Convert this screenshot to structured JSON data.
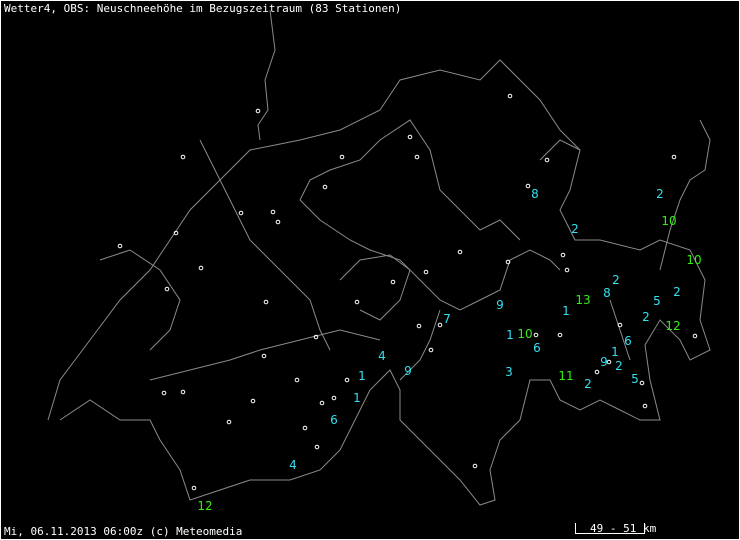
{
  "title": "Wetter4, OBS: Neuschneehöhe im Bezugszeitraum (83 Stationen)",
  "footer": "Mi, 06.11.2013 06:00z (c) Meteomedia",
  "scale_label": "49 - 51 km",
  "colors": {
    "low": "#33e0f0",
    "high": "#33ee11",
    "border": "#8a8a8a",
    "station": "#ffffff"
  },
  "stations_with_values": [
    {
      "value": "8"
    },
    {
      "value": "2"
    },
    {
      "value": "10"
    },
    {
      "value": "2"
    },
    {
      "value": "10"
    },
    {
      "value": "2"
    },
    {
      "value": "8"
    },
    {
      "value": "13"
    },
    {
      "value": "2"
    },
    {
      "value": "5"
    },
    {
      "value": "9"
    },
    {
      "value": "1"
    },
    {
      "value": "7"
    },
    {
      "value": "2"
    },
    {
      "value": "12"
    },
    {
      "value": "1"
    },
    {
      "value": "10"
    },
    {
      "value": "6"
    },
    {
      "value": "6"
    },
    {
      "value": "4"
    },
    {
      "value": "1"
    },
    {
      "value": "9"
    },
    {
      "value": "2"
    },
    {
      "value": "9"
    },
    {
      "value": "1"
    },
    {
      "value": "3"
    },
    {
      "value": "11"
    },
    {
      "value": "5"
    },
    {
      "value": "2"
    },
    {
      "value": "1"
    },
    {
      "value": "6"
    },
    {
      "value": "4"
    },
    {
      "value": "12"
    }
  ]
}
